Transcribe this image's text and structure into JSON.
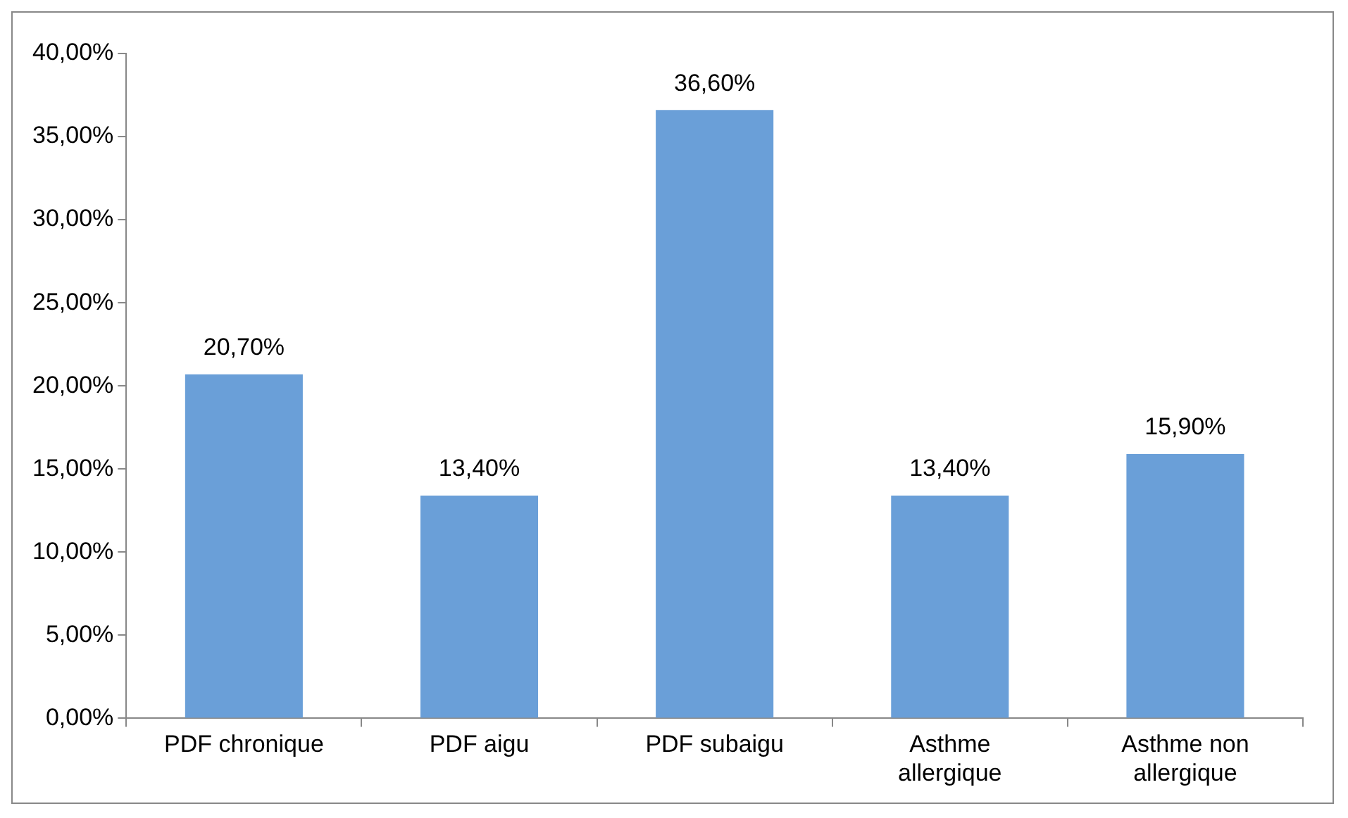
{
  "chart_data": {
    "type": "bar",
    "categories": [
      "PDF chronique",
      "PDF aigu",
      "PDF subaigu",
      "Asthme allergique",
      "Asthme non allergique"
    ],
    "values": [
      20.7,
      13.4,
      36.6,
      13.4,
      15.9
    ],
    "value_labels": [
      "20,70%",
      "13,40%",
      "36,60%",
      "13,40%",
      "15,90%"
    ],
    "color": "#6a9fd8",
    "ylim": [
      0,
      40
    ],
    "yticks": [
      {
        "value": 0,
        "label": "0,00%"
      },
      {
        "value": 5,
        "label": "5,00%"
      },
      {
        "value": 10,
        "label": "10,00%"
      },
      {
        "value": 15,
        "label": "15,00%"
      },
      {
        "value": 20,
        "label": "20,00%"
      },
      {
        "value": 25,
        "label": "25,00%"
      },
      {
        "value": 30,
        "label": "30,00%"
      },
      {
        "value": 35,
        "label": "35,00%"
      },
      {
        "value": 40,
        "label": "40,00%"
      }
    ],
    "grid": false,
    "legend": false
  }
}
